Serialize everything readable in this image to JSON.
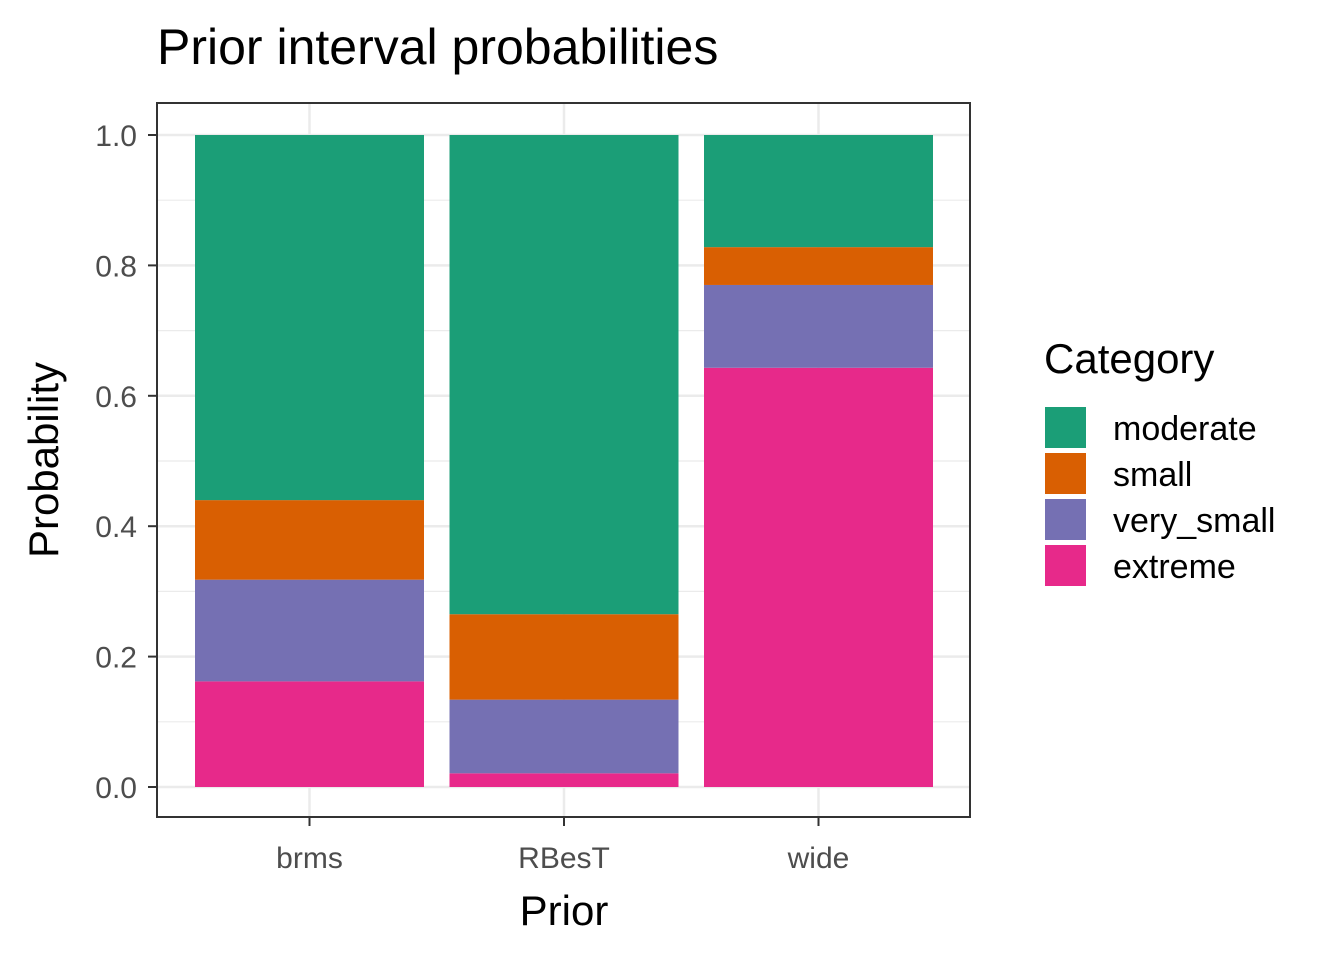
{
  "chart_data": {
    "type": "bar",
    "stacked": true,
    "title": "Prior interval probabilities",
    "xlabel": "Prior",
    "ylabel": "Probability",
    "categories": [
      "brms",
      "RBesT",
      "wide"
    ],
    "ylim": [
      0,
      1
    ],
    "yticks": [
      "0.0",
      "0.2",
      "0.4",
      "0.6",
      "0.8",
      "1.0"
    ],
    "ytick_values": [
      0,
      0.2,
      0.4,
      0.6,
      0.8,
      1.0
    ],
    "grid": true,
    "legend": {
      "title": "Category",
      "position": "right"
    },
    "series": [
      {
        "name": "extreme",
        "color": "#E7298A",
        "values": [
          0.162,
          0.021,
          0.643
        ]
      },
      {
        "name": "very_small",
        "color": "#7570B3",
        "values": [
          0.156,
          0.113,
          0.127
        ]
      },
      {
        "name": "small",
        "color": "#D95F02",
        "values": [
          0.122,
          0.131,
          0.058
        ]
      },
      {
        "name": "moderate",
        "color": "#1B9E77",
        "values": [
          0.56,
          0.735,
          0.172
        ]
      }
    ],
    "legend_order": [
      "moderate",
      "small",
      "very_small",
      "extreme"
    ]
  }
}
